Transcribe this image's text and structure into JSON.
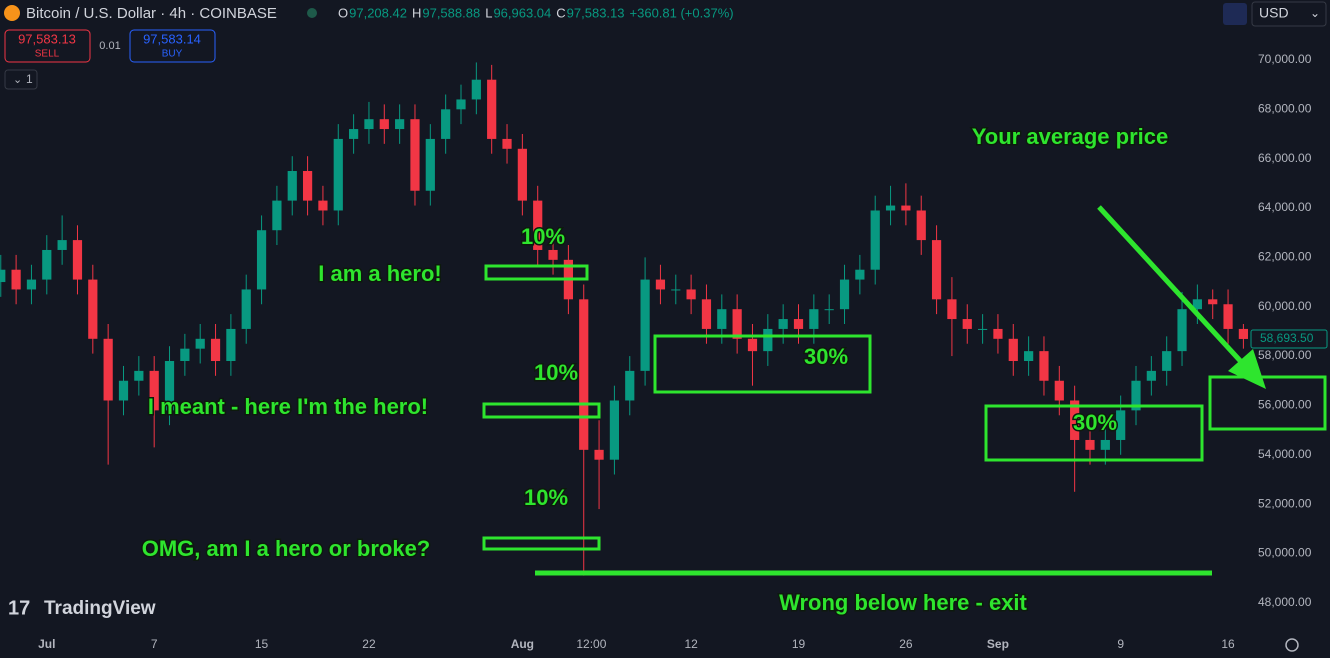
{
  "header": {
    "symbol": "Bitcoin / U.S. Dollar · 4h · COINBASE",
    "ohlc": [
      {
        "key": "O",
        "value": "97,208.42"
      },
      {
        "key": "H",
        "value": "97,588.88"
      },
      {
        "key": "L",
        "value": "96,963.04"
      },
      {
        "key": "C",
        "value": "97,583.13"
      }
    ],
    "change": "+360.81 (+0.37%)",
    "sell_price": "97,583.13",
    "sell_label": "SELL",
    "spread": "0.01",
    "buy_price": "97,583.14",
    "buy_label": "BUY",
    "interval_count": "1",
    "currency": "USD"
  },
  "watermark": "TradingView",
  "chart_data": {
    "type": "candlestick",
    "x": [
      -3,
      -2,
      -1,
      0,
      1,
      2,
      3,
      4,
      5,
      6,
      7,
      8,
      9,
      10,
      11,
      12,
      13,
      14,
      15,
      16,
      17,
      18,
      19,
      20,
      21,
      22,
      23,
      24,
      25,
      26,
      27,
      28,
      29,
      30,
      31,
      32,
      33,
      34,
      35,
      36,
      37,
      38,
      39,
      40,
      41,
      42,
      43,
      44,
      45,
      46,
      47,
      48,
      49,
      50,
      51,
      52,
      53,
      54,
      55,
      56,
      57,
      58,
      59,
      60,
      61,
      62,
      63,
      64,
      65,
      66,
      67,
      68,
      69,
      70,
      71,
      72,
      73,
      74,
      75,
      76,
      77,
      78
    ],
    "open": [
      61000,
      61500,
      60700,
      61100,
      62300,
      62700,
      61100,
      58700,
      56200,
      57000,
      57400,
      55800,
      57800,
      58300,
      58700,
      57800,
      59100,
      60700,
      63100,
      64300,
      65500,
      64300,
      63900,
      66800,
      67200,
      67600,
      67200,
      67600,
      64700,
      66800,
      68000,
      68400,
      69200,
      66800,
      66400,
      64300,
      62300,
      61900,
      60300,
      54200,
      53800,
      56200,
      57400,
      61100,
      60700,
      60700,
      60300,
      59100,
      59900,
      58700,
      58200,
      59100,
      59500,
      59100,
      59900,
      59900,
      61100,
      61500,
      63900,
      64100,
      63900,
      62700,
      60300,
      59500,
      59100,
      59100,
      58700,
      57800,
      58200,
      57000,
      56200,
      54600,
      54200,
      54600,
      55800,
      57000,
      57400,
      58200,
      59900,
      60300,
      60100,
      59100
    ],
    "high": [
      62100,
      62100,
      61700,
      62900,
      63700,
      63300,
      61700,
      59300,
      57600,
      58000,
      58000,
      58400,
      58900,
      59300,
      59300,
      59700,
      61300,
      63700,
      64900,
      66100,
      66100,
      64900,
      67400,
      67800,
      68300,
      68200,
      68200,
      68200,
      67400,
      68600,
      69000,
      69900,
      69800,
      67400,
      67000,
      64900,
      63100,
      62500,
      60900,
      55400,
      56800,
      58000,
      62000,
      61700,
      61300,
      61300,
      60900,
      60500,
      60500,
      59300,
      59700,
      60100,
      60100,
      60500,
      60500,
      61700,
      62100,
      64500,
      64900,
      65000,
      64500,
      63300,
      61200,
      60100,
      59700,
      59700,
      59300,
      58800,
      58800,
      57600,
      56800,
      55200,
      55200,
      56400,
      57600,
      58000,
      58800,
      60600,
      60900,
      60700,
      60700,
      59300
    ],
    "low": [
      60400,
      60100,
      60100,
      60500,
      61700,
      60500,
      58100,
      53600,
      55600,
      56400,
      54300,
      55200,
      57200,
      57700,
      57200,
      57200,
      58500,
      60100,
      62500,
      63700,
      63700,
      63300,
      63300,
      66200,
      66600,
      66600,
      66600,
      64100,
      64100,
      66200,
      67400,
      67800,
      66200,
      65800,
      63700,
      61700,
      61300,
      59700,
      49100,
      51800,
      53200,
      55600,
      56800,
      60100,
      60100,
      59700,
      58500,
      58500,
      58100,
      56800,
      57600,
      58500,
      58500,
      58500,
      59300,
      59300,
      60500,
      60900,
      63300,
      63300,
      62100,
      59700,
      58000,
      58500,
      58500,
      58100,
      57200,
      57200,
      56400,
      55600,
      52500,
      53600,
      53600,
      54000,
      55200,
      56400,
      56800,
      57600,
      59300,
      59500,
      58500,
      58300
    ],
    "close": [
      61500,
      60700,
      61100,
      62300,
      62700,
      61100,
      58700,
      56200,
      57000,
      57400,
      55800,
      57800,
      58300,
      58700,
      57800,
      59100,
      60700,
      63100,
      64300,
      65500,
      64300,
      63900,
      66800,
      67200,
      67600,
      67200,
      67600,
      64700,
      66800,
      68000,
      68400,
      69200,
      66800,
      66400,
      64300,
      62300,
      61900,
      60300,
      54200,
      53800,
      56200,
      57400,
      61100,
      60700,
      60700,
      60300,
      59100,
      59900,
      58700,
      58200,
      59100,
      59500,
      59100,
      59900,
      59900,
      61100,
      61500,
      63900,
      64100,
      63900,
      62700,
      60300,
      59500,
      59100,
      59100,
      58700,
      57800,
      58200,
      57000,
      56200,
      54600,
      54200,
      54600,
      55800,
      57000,
      57400,
      58200,
      59900,
      60300,
      60100,
      59100,
      58693.5
    ],
    "last_value_label": "58,693.50",
    "up_color": "#089981",
    "down_color": "#f23645",
    "xlim": [
      -3.05,
      78.3
    ],
    "ylim": [
      46980,
      72430
    ],
    "xticks": [
      {
        "value": 0,
        "label": "Jul"
      },
      7,
      {
        "value": 14,
        "label": "15"
      },
      {
        "value": 21,
        "label": "22"
      },
      {
        "value": 31,
        "label": "Aug"
      },
      {
        "value": 35.5,
        "label": "12:00"
      },
      {
        "value": 42,
        "label": "12"
      },
      {
        "value": 49,
        "label": "19"
      },
      {
        "value": 56,
        "label": "26"
      },
      {
        "value": 62,
        "label": "Sep"
      },
      {
        "value": 70,
        "label": "9"
      },
      {
        "value": 77,
        "label": "16"
      }
    ],
    "yticks": [
      {
        "value": 48000,
        "label": "48,000.00"
      },
      {
        "value": 50000,
        "label": "50,000.00"
      },
      {
        "value": 52000,
        "label": "52,000.00"
      },
      {
        "value": 54000,
        "label": "54,000.00"
      },
      {
        "value": 56000,
        "label": "56,000.00"
      },
      {
        "value": 58000,
        "label": "58,000.00"
      },
      {
        "value": 60000,
        "label": "60,000.00"
      },
      {
        "value": 62000,
        "label": "62,000.00"
      },
      {
        "value": 64000,
        "label": "64,000.00"
      },
      {
        "value": 66000,
        "label": "66,000.00"
      },
      {
        "value": 68000,
        "label": "68,000.00"
      },
      {
        "value": 70000,
        "label": "70,000.00"
      }
    ],
    "annotations": [
      "Your average price",
      "10%",
      "I am a hero!",
      "10%",
      "I meant - here I'm the hero!",
      "10%",
      "OMG, am I a hero or broke?",
      "30%",
      "30%",
      "Wrong below here - exit"
    ]
  }
}
